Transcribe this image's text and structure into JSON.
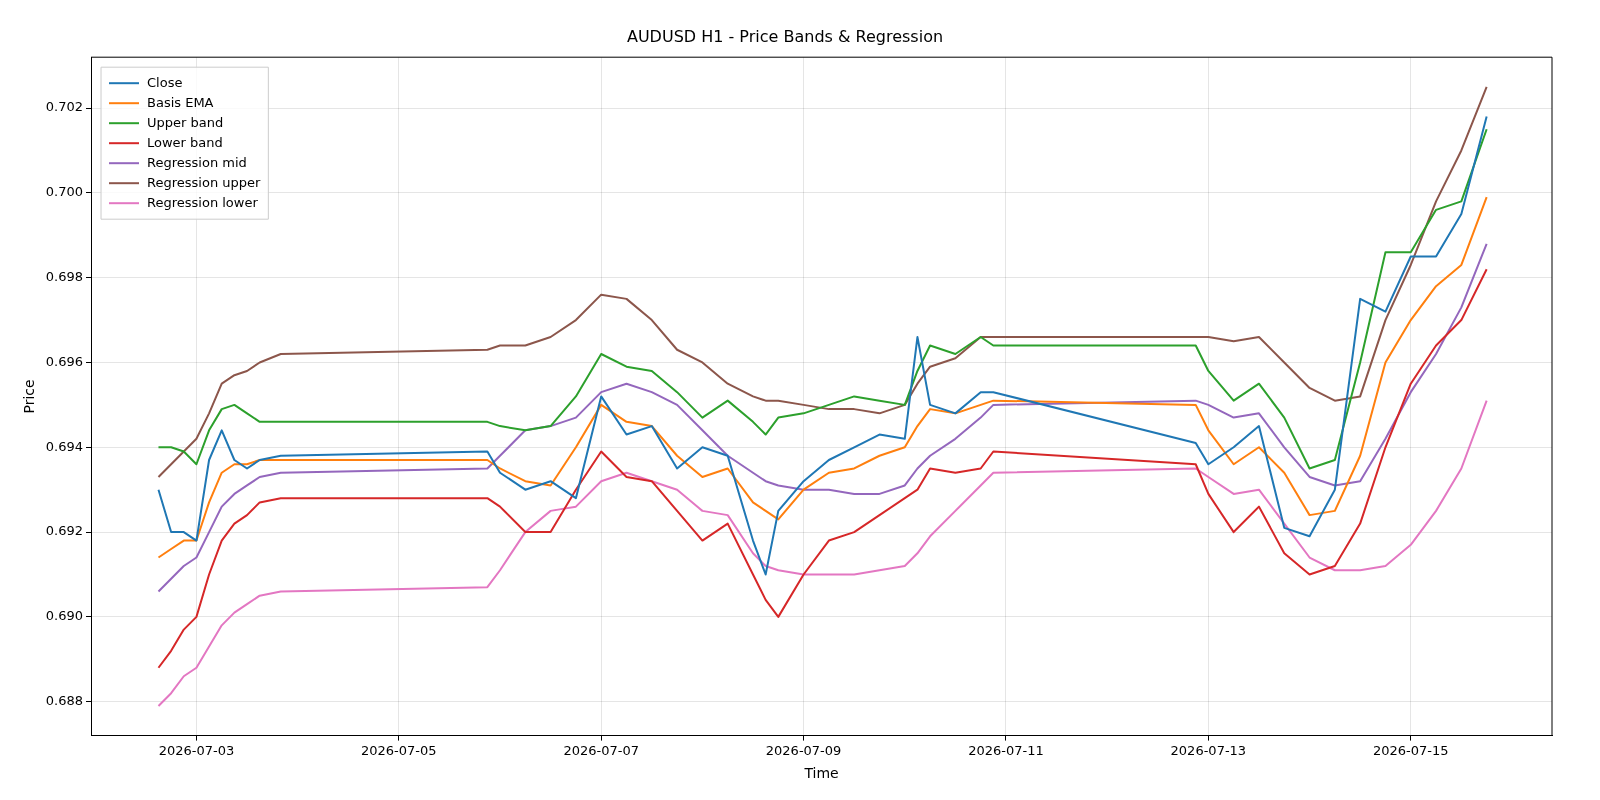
{
  "chart_data": {
    "type": "line",
    "title": "AUDUSD H1 - Price Bands & Regression",
    "xlabel": "Time",
    "ylabel": "Price",
    "x": [
      "2026-07-02T15:00",
      "2026-07-02T18:00",
      "2026-07-02T21:00",
      "2026-07-03T00:00",
      "2026-07-03T03:00",
      "2026-07-03T06:00",
      "2026-07-03T09:00",
      "2026-07-03T12:00",
      "2026-07-03T15:00",
      "2026-07-03T20:00",
      "2026-07-05T21:00",
      "2026-07-06T00:00",
      "2026-07-06T06:00",
      "2026-07-06T12:00",
      "2026-07-06T18:00",
      "2026-07-07T00:00",
      "2026-07-07T06:00",
      "2026-07-07T12:00",
      "2026-07-07T18:00",
      "2026-07-08T00:00",
      "2026-07-08T06:00",
      "2026-07-08T12:00",
      "2026-07-08T15:00",
      "2026-07-08T18:00",
      "2026-07-09T00:00",
      "2026-07-09T06:00",
      "2026-07-09T12:00",
      "2026-07-09T18:00",
      "2026-07-10T00:00",
      "2026-07-10T03:00",
      "2026-07-10T06:00",
      "2026-07-10T12:00",
      "2026-07-10T18:00",
      "2026-07-10T21:00",
      "2026-07-12T21:00",
      "2026-07-13T00:00",
      "2026-07-13T06:00",
      "2026-07-13T12:00",
      "2026-07-13T18:00",
      "2026-07-14T00:00",
      "2026-07-14T06:00",
      "2026-07-14T12:00",
      "2026-07-14T18:00",
      "2026-07-15T00:00",
      "2026-07-15T06:00",
      "2026-07-15T12:00",
      "2026-07-15T18:00"
    ],
    "series": [
      {
        "name": "Close",
        "color": "#1f77b4",
        "values": [
          0.693,
          0.692,
          0.692,
          0.6918,
          0.6937,
          0.6944,
          0.6937,
          0.6935,
          0.6937,
          0.6938,
          0.6939,
          0.6934,
          0.693,
          0.6932,
          0.6928,
          0.6952,
          0.6943,
          0.6945,
          0.6935,
          0.694,
          0.6938,
          0.6918,
          0.691,
          0.6925,
          0.6932,
          0.6937,
          0.694,
          0.6943,
          0.6942,
          0.6966,
          0.695,
          0.6948,
          0.6953,
          0.6953,
          0.6941,
          0.6936,
          0.694,
          0.6945,
          0.6921,
          0.6919,
          0.693,
          0.6975,
          0.6972,
          0.6985,
          0.6985,
          0.6995,
          0.7018
        ]
      },
      {
        "name": "Basis EMA",
        "color": "#ff7f0e",
        "values": [
          0.6914,
          0.6916,
          0.6918,
          0.6918,
          0.6927,
          0.6934,
          0.6936,
          0.6936,
          0.6937,
          0.6937,
          0.6937,
          0.6935,
          0.6932,
          0.6931,
          0.694,
          0.695,
          0.6946,
          0.6945,
          0.6938,
          0.6933,
          0.6935,
          0.6927,
          0.6925,
          0.6923,
          0.693,
          0.6934,
          0.6935,
          0.6938,
          0.694,
          0.6945,
          0.6949,
          0.6948,
          0.695,
          0.6951,
          0.695,
          0.6944,
          0.6936,
          0.694,
          0.6934,
          0.6924,
          0.6925,
          0.6938,
          0.696,
          0.697,
          0.6978,
          0.6983,
          0.6999
        ]
      },
      {
        "name": "Upper band",
        "color": "#2ca02c",
        "values": [
          0.694,
          0.694,
          0.6939,
          0.6936,
          0.6944,
          0.6949,
          0.695,
          0.6948,
          0.6946,
          0.6946,
          0.6946,
          0.6945,
          0.6944,
          0.6945,
          0.6952,
          0.6962,
          0.6959,
          0.6958,
          0.6953,
          0.6947,
          0.6951,
          0.6946,
          0.6943,
          0.6947,
          0.6948,
          0.695,
          0.6952,
          0.6951,
          0.695,
          0.6958,
          0.6964,
          0.6962,
          0.6966,
          0.6964,
          0.6964,
          0.6958,
          0.6951,
          0.6955,
          0.6947,
          0.6935,
          0.6937,
          0.696,
          0.6986,
          0.6986,
          0.6996,
          0.6998,
          0.7015
        ]
      },
      {
        "name": "Lower band",
        "color": "#d62728",
        "values": [
          0.6888,
          0.6892,
          0.6897,
          0.69,
          0.691,
          0.6918,
          0.6922,
          0.6924,
          0.6927,
          0.6928,
          0.6928,
          0.6926,
          0.692,
          0.692,
          0.693,
          0.6939,
          0.6933,
          0.6932,
          0.6925,
          0.6918,
          0.6922,
          0.691,
          0.6904,
          0.69,
          0.691,
          0.6918,
          0.692,
          0.6924,
          0.6928,
          0.693,
          0.6935,
          0.6934,
          0.6935,
          0.6939,
          0.6936,
          0.6929,
          0.692,
          0.6926,
          0.6915,
          0.691,
          0.6912,
          0.6922,
          0.694,
          0.6955,
          0.6964,
          0.697,
          0.6982
        ]
      },
      {
        "name": "Regression mid",
        "color": "#9467bd",
        "values": [
          0.6906,
          0.6909,
          0.6912,
          0.6914,
          0.692,
          0.6926,
          0.6929,
          0.6931,
          0.6933,
          0.6934,
          0.6935,
          0.6938,
          0.6944,
          0.6945,
          0.6947,
          0.6953,
          0.6955,
          0.6953,
          0.695,
          0.6944,
          0.6938,
          0.6934,
          0.6932,
          0.6931,
          0.693,
          0.693,
          0.6929,
          0.6929,
          0.6931,
          0.6935,
          0.6938,
          0.6942,
          0.6947,
          0.695,
          0.6951,
          0.695,
          0.6947,
          0.6948,
          0.694,
          0.6933,
          0.6931,
          0.6932,
          0.6942,
          0.6953,
          0.6962,
          0.6973,
          0.6988
        ]
      },
      {
        "name": "Regression upper",
        "color": "#8c564b",
        "values": [
          0.6933,
          0.6936,
          0.6939,
          0.6942,
          0.6948,
          0.6955,
          0.6957,
          0.6958,
          0.696,
          0.6962,
          0.6963,
          0.6964,
          0.6964,
          0.6966,
          0.697,
          0.6976,
          0.6975,
          0.697,
          0.6963,
          0.696,
          0.6955,
          0.6952,
          0.6951,
          0.6951,
          0.695,
          0.6949,
          0.6949,
          0.6948,
          0.695,
          0.6955,
          0.6959,
          0.6961,
          0.6966,
          0.6966,
          0.6966,
          0.6966,
          0.6965,
          0.6966,
          0.696,
          0.6954,
          0.6951,
          0.6952,
          0.697,
          0.6983,
          0.6998,
          0.701,
          0.7025
        ]
      },
      {
        "name": "Regression lower",
        "color": "#e377c2",
        "values": [
          0.6879,
          0.6882,
          0.6886,
          0.6888,
          0.6893,
          0.6898,
          0.6901,
          0.6903,
          0.6905,
          0.6906,
          0.6907,
          0.6911,
          0.692,
          0.6925,
          0.6926,
          0.6932,
          0.6934,
          0.6932,
          0.693,
          0.6925,
          0.6924,
          0.6915,
          0.6912,
          0.6911,
          0.691,
          0.691,
          0.691,
          0.6911,
          0.6912,
          0.6915,
          0.6919,
          0.6925,
          0.6931,
          0.6934,
          0.6935,
          0.6933,
          0.6929,
          0.693,
          0.6922,
          0.6914,
          0.6911,
          0.6911,
          0.6912,
          0.6917,
          0.6925,
          0.6935,
          0.6951
        ]
      }
    ],
    "xlim": [
      "2026-07-01T23:00",
      "2026-07-16T09:30"
    ],
    "xticks": [
      "2026-07-03",
      "2026-07-05",
      "2026-07-07",
      "2026-07-09",
      "2026-07-11",
      "2026-07-13",
      "2026-07-15"
    ],
    "ylim": [
      0.6872,
      0.7032
    ],
    "yticks": [
      {
        "value": 0.688,
        "label": "0.688"
      },
      {
        "value": 0.69,
        "label": "0.690"
      },
      {
        "value": 0.692,
        "label": "0.692"
      },
      {
        "value": 0.694,
        "label": "0.694"
      },
      {
        "value": 0.696,
        "label": "0.696"
      },
      {
        "value": 0.698,
        "label": "0.698"
      },
      {
        "value": 0.7,
        "label": "0.700"
      },
      {
        "value": 0.702,
        "label": "0.702"
      }
    ],
    "grid": true,
    "legend": "top left",
    "marker": "none",
    "line_style": "solid"
  }
}
